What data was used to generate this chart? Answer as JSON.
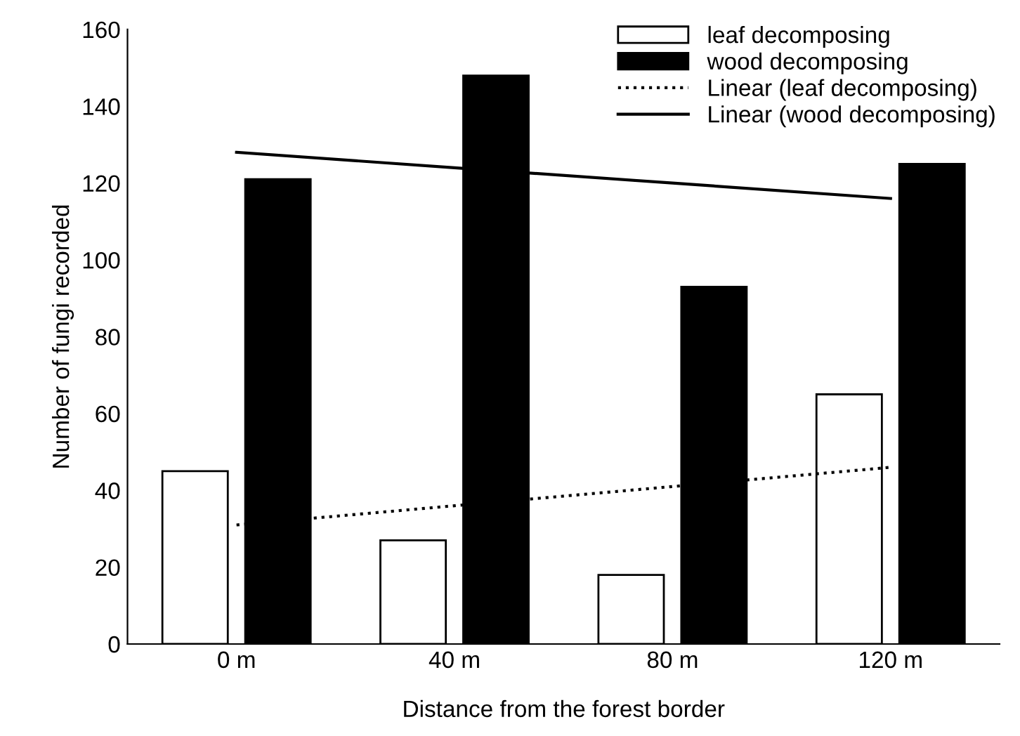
{
  "chart_data": {
    "type": "bar",
    "xlabel": "Distance from the forest border",
    "ylabel": "Number of fungi recorded",
    "categories": [
      "0 m",
      "40 m",
      "80 m",
      "120 m"
    ],
    "series": [
      {
        "name": "leaf decomposing",
        "color": "#ffffff",
        "values": [
          45,
          27,
          18,
          65
        ]
      },
      {
        "name": "wood decomposing",
        "color": "#000000",
        "values": [
          121,
          148,
          93,
          125
        ]
      },
      {
        "name": "Linear (leaf decomposing)",
        "type": "line",
        "color": "#000000",
        "line_style": "dotted",
        "values": [
          31,
          36,
          41,
          46
        ]
      },
      {
        "name": "Linear (wood decomposing)",
        "type": "line",
        "color": "#000000",
        "line_style": "solid",
        "values": [
          128,
          124,
          120,
          116
        ]
      }
    ],
    "ylim": [
      0,
      160
    ],
    "yticks": [
      0,
      20,
      40,
      60,
      80,
      100,
      120,
      140,
      160
    ],
    "grid": false,
    "legend": "top right"
  }
}
